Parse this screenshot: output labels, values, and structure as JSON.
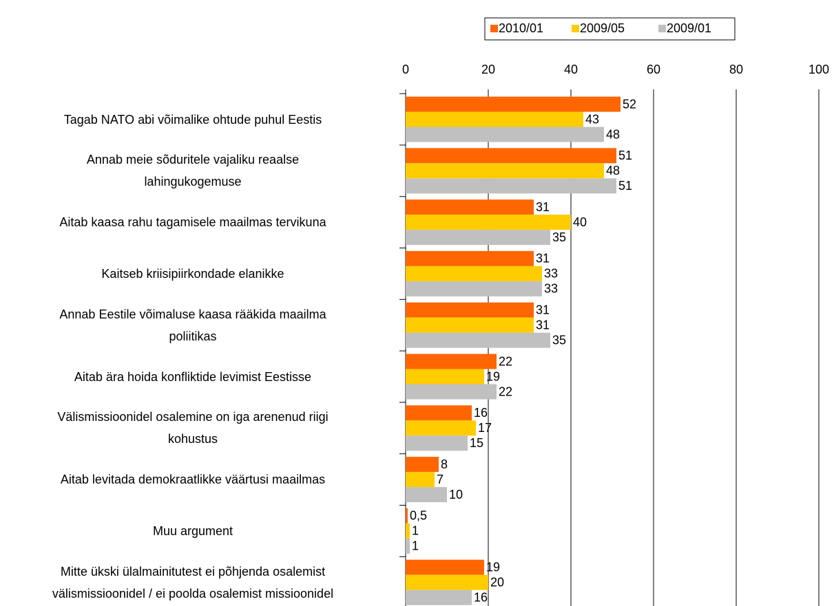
{
  "chart_data": {
    "type": "bar",
    "orientation": "horizontal",
    "categories": [
      "Tagab NATO abi võimalike ohtude puhul Eestis",
      "Annab meie sõduritele vajaliku reaalse\nlahingukogemuse",
      "Aitab kaasa rahu tagamisele maailmas tervikuna",
      "Kaitseb kriisipiirkondade elanikke",
      "Annab Eestile võimaluse kaasa rääkida maailma\npoliitikas",
      "Aitab ära hoida konfliktide levimist Eestisse",
      "Välismissioonidel osalemine on iga arenenud riigi\nkohustus",
      "Aitab levitada demokraatlikke väärtusi maailmas",
      "Muu argument",
      "Mitte ükski ülalmainitutest ei põhjenda osalemist\nvälismissioonidel / ei poolda osalemist missioonidel"
    ],
    "series": [
      {
        "name": "2010/01",
        "color": "#ff6600",
        "values": [
          52,
          51,
          31,
          31,
          31,
          22,
          16,
          8,
          0.5,
          19
        ],
        "value_labels": [
          "52",
          "51",
          "31",
          "31",
          "31",
          "22",
          "16",
          "8",
          "0,5",
          "19"
        ]
      },
      {
        "name": "2009/05",
        "color": "#ffcc00",
        "values": [
          43,
          48,
          40,
          33,
          31,
          19,
          17,
          7,
          1,
          20
        ]
      },
      {
        "name": "2009/01",
        "color": "#c0c0c0",
        "values": [
          48,
          51,
          35,
          33,
          35,
          22,
          15,
          10,
          1,
          16
        ]
      }
    ],
    "xlim": [
      0,
      100
    ],
    "xticks": [
      0,
      20,
      40,
      60,
      80,
      100
    ],
    "grid": true,
    "legend": "top"
  }
}
